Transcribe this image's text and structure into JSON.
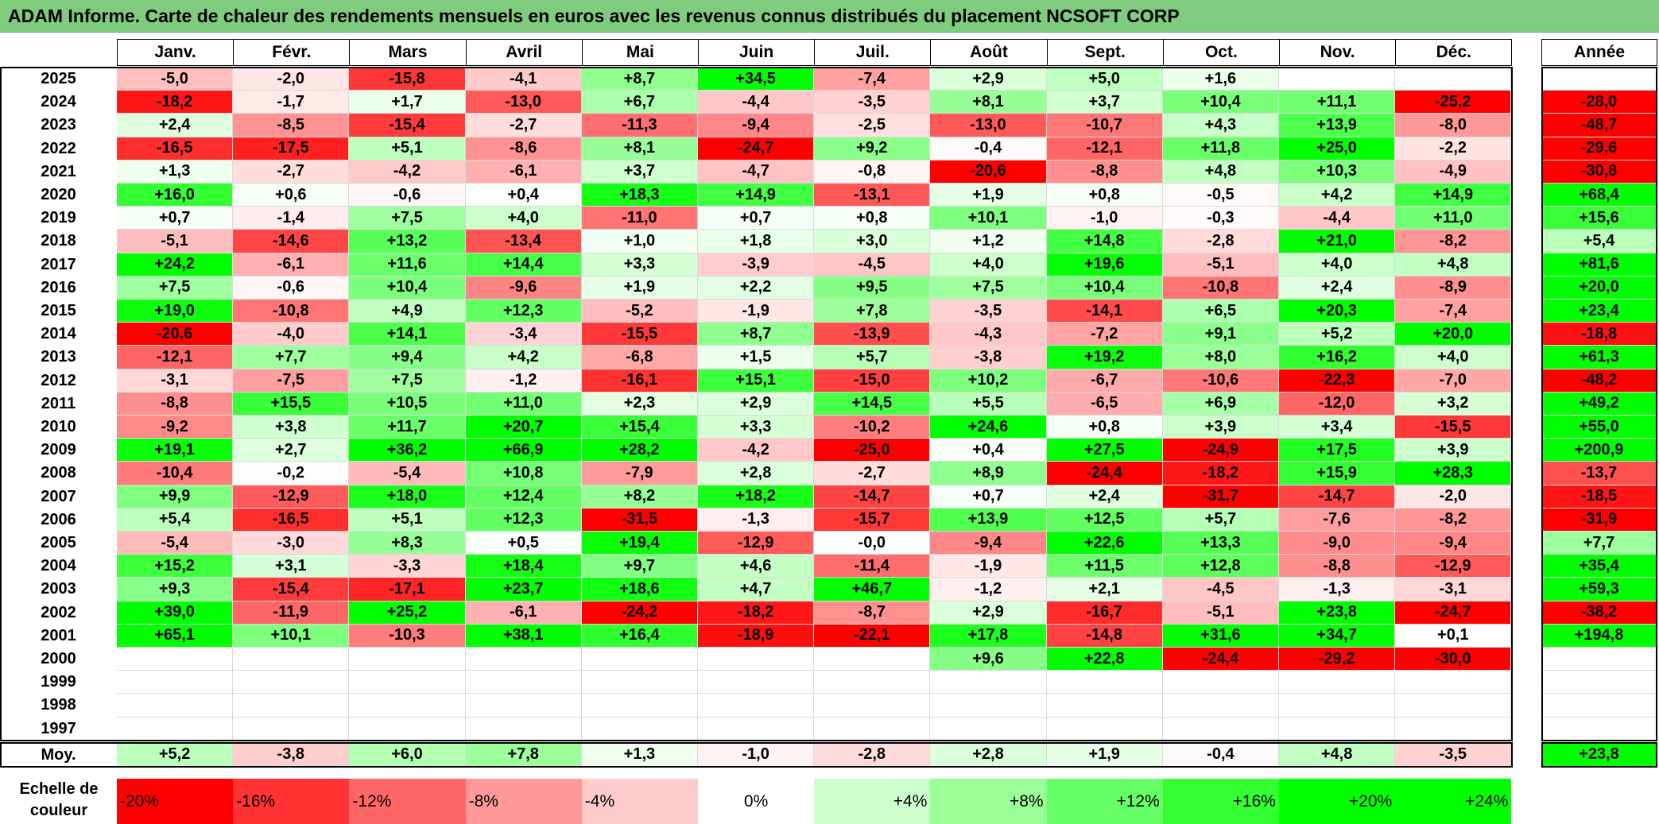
{
  "title": "ADAM Informe. Carte de chaleur des rendements mensuels en euros avec les revenus connus distribués du placement NCSOFT CORP",
  "months": [
    "Janv.",
    "Févr.",
    "Mars",
    "Avril",
    "Mai",
    "Juin",
    "Juil.",
    "Août",
    "Sept.",
    "Oct.",
    "Nov.",
    "Déc."
  ],
  "year_header": "Année",
  "avg_label": "Moy.",
  "scale_label": "Echelle de couleur",
  "colors": {
    "title_bg": "#7fcc7f",
    "max_red": "#ff0000",
    "max_green": "#00ff00",
    "neutral": "#ffffff"
  },
  "chart_data": {
    "type": "heatmap",
    "title": "ADAM Informe. Carte de chaleur des rendements mensuels en euros avec les revenus connus distribués du placement NCSOFT CORP",
    "columns": [
      "Janv.",
      "Févr.",
      "Mars",
      "Avril",
      "Mai",
      "Juin",
      "Juil.",
      "Août",
      "Sept.",
      "Oct.",
      "Nov.",
      "Déc."
    ],
    "rows": [
      {
        "year": "2025",
        "values": [
          "-5,0",
          "-2,0",
          "-15,8",
          "-4,1",
          "+8,7",
          "+34,5",
          "-7,4",
          "+2,9",
          "+5,0",
          "+1,6",
          "",
          ""
        ],
        "annual": ""
      },
      {
        "year": "2024",
        "values": [
          "-18,2",
          "-1,7",
          "+1,7",
          "-13,0",
          "+6,7",
          "-4,4",
          "-3,5",
          "+8,1",
          "+3,7",
          "+10,4",
          "+11,1",
          "-25,2"
        ],
        "annual": "-28,0"
      },
      {
        "year": "2023",
        "values": [
          "+2,4",
          "-8,5",
          "-15,4",
          "-2,7",
          "-11,3",
          "-9,4",
          "-2,5",
          "-13,0",
          "-10,7",
          "+4,3",
          "+13,9",
          "-8,0"
        ],
        "annual": "-48,7"
      },
      {
        "year": "2022",
        "values": [
          "-16,5",
          "-17,5",
          "+5,1",
          "-8,6",
          "+8,1",
          "-24,7",
          "+9,2",
          "-0,4",
          "-12,1",
          "+11,8",
          "+25,0",
          "-2,2"
        ],
        "annual": "-29,6"
      },
      {
        "year": "2021",
        "values": [
          "+1,3",
          "-2,7",
          "-4,2",
          "-6,1",
          "+3,7",
          "-4,7",
          "-0,8",
          "-20,6",
          "-8,8",
          "+4,8",
          "+10,3",
          "-4,9"
        ],
        "annual": "-30,8"
      },
      {
        "year": "2020",
        "values": [
          "+16,0",
          "+0,6",
          "-0,6",
          "+0,4",
          "+18,3",
          "+14,9",
          "-13,1",
          "+1,9",
          "+0,8",
          "-0,5",
          "+4,2",
          "+14,9"
        ],
        "annual": "+68,4"
      },
      {
        "year": "2019",
        "values": [
          "+0,7",
          "-1,4",
          "+7,5",
          "+4,0",
          "-11,0",
          "+0,7",
          "+0,8",
          "+10,1",
          "-1,0",
          "-0,3",
          "-4,4",
          "+11,0"
        ],
        "annual": "+15,6"
      },
      {
        "year": "2018",
        "values": [
          "-5,1",
          "-14,6",
          "+13,2",
          "-13,4",
          "+1,0",
          "+1,8",
          "+3,0",
          "+1,2",
          "+14,8",
          "-2,8",
          "+21,0",
          "-8,2"
        ],
        "annual": "+5,4"
      },
      {
        "year": "2017",
        "values": [
          "+24,2",
          "-6,1",
          "+11,6",
          "+14,4",
          "+3,3",
          "-3,9",
          "-4,5",
          "+4,0",
          "+19,6",
          "-5,1",
          "+4,0",
          "+4,8"
        ],
        "annual": "+81,6"
      },
      {
        "year": "2016",
        "values": [
          "+7,5",
          "-0,6",
          "+10,4",
          "-9,6",
          "+1,9",
          "+2,2",
          "+9,5",
          "+7,5",
          "+10,4",
          "-10,8",
          "+2,4",
          "-8,9"
        ],
        "annual": "+20,0"
      },
      {
        "year": "2015",
        "values": [
          "+19,0",
          "-10,8",
          "+4,9",
          "+12,3",
          "-5,2",
          "-1,9",
          "+7,8",
          "-3,5",
          "-14,1",
          "+6,5",
          "+20,3",
          "-7,4"
        ],
        "annual": "+23,4"
      },
      {
        "year": "2014",
        "values": [
          "-20,6",
          "-4,0",
          "+14,1",
          "-3,4",
          "-15,5",
          "+8,7",
          "-13,9",
          "-4,3",
          "-7,2",
          "+9,1",
          "+5,2",
          "+20,0"
        ],
        "annual": "-18,8"
      },
      {
        "year": "2013",
        "values": [
          "-12,1",
          "+7,7",
          "+9,4",
          "+4,2",
          "-6,8",
          "+1,5",
          "+5,7",
          "-3,8",
          "+19,2",
          "+8,0",
          "+16,2",
          "+4,0"
        ],
        "annual": "+61,3"
      },
      {
        "year": "2012",
        "values": [
          "-3,1",
          "-7,5",
          "+7,5",
          "-1,2",
          "-16,1",
          "+15,1",
          "-15,0",
          "+10,2",
          "-6,7",
          "-10,6",
          "-22,3",
          "-7,0"
        ],
        "annual": "-48,2"
      },
      {
        "year": "2011",
        "values": [
          "-8,8",
          "+15,5",
          "+10,5",
          "+11,0",
          "+2,3",
          "+2,9",
          "+14,5",
          "+5,5",
          "-6,5",
          "+6,9",
          "-12,0",
          "+3,2"
        ],
        "annual": "+49,2"
      },
      {
        "year": "2010",
        "values": [
          "-9,2",
          "+3,8",
          "+11,7",
          "+20,7",
          "+15,4",
          "+3,3",
          "-10,2",
          "+24,6",
          "+0,8",
          "+3,9",
          "+3,4",
          "-15,5"
        ],
        "annual": "+55,0"
      },
      {
        "year": "2009",
        "values": [
          "+19,1",
          "+2,7",
          "+36,2",
          "+66,9",
          "+28,2",
          "-4,2",
          "-25,0",
          "+0,4",
          "+27,5",
          "-24,9",
          "+17,5",
          "+3,9"
        ],
        "annual": "+200,9"
      },
      {
        "year": "2008",
        "values": [
          "-10,4",
          "-0,2",
          "-5,4",
          "+10,8",
          "-7,9",
          "+2,8",
          "-2,7",
          "+8,9",
          "-24,4",
          "-18,2",
          "+15,9",
          "+28,3"
        ],
        "annual": "-13,7"
      },
      {
        "year": "2007",
        "values": [
          "+9,9",
          "-12,9",
          "+18,0",
          "+12,4",
          "+8,2",
          "+18,2",
          "-14,7",
          "+0,7",
          "+2,4",
          "-31,7",
          "-14,7",
          "-2,0"
        ],
        "annual": "-18,5"
      },
      {
        "year": "2006",
        "values": [
          "+5,4",
          "-16,5",
          "+5,1",
          "+12,3",
          "-31,5",
          "-1,3",
          "-15,7",
          "+13,9",
          "+12,5",
          "+5,7",
          "-7,6",
          "-8,2"
        ],
        "annual": "-31,9"
      },
      {
        "year": "2005",
        "values": [
          "-5,4",
          "-3,0",
          "+8,3",
          "+0,5",
          "+19,4",
          "-12,9",
          "-0,0",
          "-9,4",
          "+22,6",
          "+13,3",
          "-9,0",
          "-9,4"
        ],
        "annual": "+7,7"
      },
      {
        "year": "2004",
        "values": [
          "+15,2",
          "+3,1",
          "-3,3",
          "+18,4",
          "+9,7",
          "+4,6",
          "-11,4",
          "-1,9",
          "+11,5",
          "+12,8",
          "-8,8",
          "-12,9"
        ],
        "annual": "+35,4"
      },
      {
        "year": "2003",
        "values": [
          "+9,3",
          "-15,4",
          "-17,1",
          "+23,7",
          "+18,6",
          "+4,7",
          "+46,7",
          "-1,2",
          "+2,1",
          "-4,5",
          "-1,3",
          "-3,1"
        ],
        "annual": "+59,3"
      },
      {
        "year": "2002",
        "values": [
          "+39,0",
          "-11,9",
          "+25,2",
          "-6,1",
          "-24,2",
          "-18,2",
          "-8,7",
          "+2,9",
          "-16,7",
          "-5,1",
          "+23,8",
          "-24,7"
        ],
        "annual": "-38,2"
      },
      {
        "year": "2001",
        "values": [
          "+65,1",
          "+10,1",
          "-10,3",
          "+38,1",
          "+16,4",
          "-18,9",
          "-22,1",
          "+17,8",
          "-14,8",
          "+31,6",
          "+34,7",
          "+0,1"
        ],
        "annual": "+194,8"
      },
      {
        "year": "2000",
        "values": [
          "",
          "",
          "",
          "",
          "",
          "",
          "",
          "+9,6",
          "+22,8",
          "-24,4",
          "-29,2",
          "-30,0"
        ],
        "annual": ""
      },
      {
        "year": "1999",
        "values": [
          "",
          "",
          "",
          "",
          "",
          "",
          "",
          "",
          "",
          "",
          "",
          ""
        ],
        "annual": ""
      },
      {
        "year": "1998",
        "values": [
          "",
          "",
          "",
          "",
          "",
          "",
          "",
          "",
          "",
          "",
          "",
          ""
        ],
        "annual": ""
      },
      {
        "year": "1997",
        "values": [
          "",
          "",
          "",
          "",
          "",
          "",
          "",
          "",
          "",
          "",
          "",
          ""
        ],
        "annual": ""
      }
    ],
    "averages": [
      "+5,2",
      "-3,8",
      "+6,0",
      "+7,8",
      "+1,3",
      "-1,0",
      "-2,8",
      "+2,8",
      "+1,9",
      "-0,4",
      "+4,8",
      "-3,5"
    ],
    "average_annual": "+23,8",
    "scale": [
      "-20%",
      "-16%",
      "-12%",
      "-8%",
      "-4%",
      "0%",
      "+4%",
      "+8%",
      "+12%",
      "+16%",
      "+20%",
      "+24%"
    ],
    "scale_values": [
      -20,
      -16,
      -12,
      -8,
      -4,
      0,
      4,
      8,
      12,
      16,
      20,
      24
    ],
    "color_range": [
      -20,
      24
    ]
  }
}
